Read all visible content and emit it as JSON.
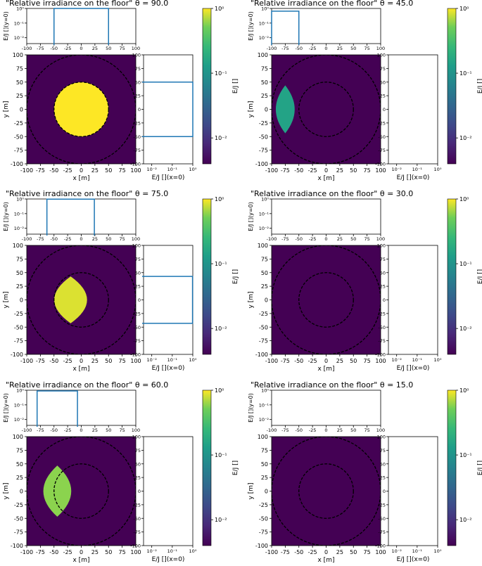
{
  "chart_data": [
    {
      "type": "heatmap",
      "title": "\"Relative irradiance on the floor\" θ = 90.0",
      "theta": 90.0,
      "xlabel": "x [m]",
      "ylabel": "y [m]",
      "xlim": [
        -100,
        100
      ],
      "ylim": [
        -100,
        100
      ],
      "top_ylabel": "E/J [](y=0)",
      "right_xlabel": "E/J [](x=0)",
      "colorbar_label": "E/J []",
      "xticks": [
        "-100",
        "-75",
        "-50",
        "-25",
        "0",
        "25",
        "50",
        "75",
        "100"
      ],
      "yticks": [
        "-100",
        "-75",
        "-50",
        "-25",
        "0",
        "25",
        "50",
        "75",
        "100"
      ],
      "profile_ticks": [
        "10⁻²",
        "10⁻¹",
        "10⁰"
      ],
      "colorbar_ticks": [
        "10⁰",
        "10⁻¹",
        "10⁻²"
      ],
      "inner_circle_radius": 50,
      "outer_circle_radius": 100,
      "lit_region": {
        "shape": "circle",
        "center": [
          0,
          0
        ],
        "radius": 50
      },
      "profile_y0": {
        "x_start": -50,
        "x_end": 50,
        "value": 1
      },
      "profile_x0": {
        "y_start": -50,
        "y_end": 50,
        "value": 1
      }
    },
    {
      "type": "heatmap",
      "title": "\"Relative irradiance on the floor\" θ = 45.0",
      "theta": 45.0,
      "xlabel": "x [m]",
      "ylabel": "y [m]",
      "xlim": [
        -100,
        100
      ],
      "ylim": [
        -100,
        100
      ],
      "top_ylabel": "E/J [](y=0)",
      "right_xlabel": "E/J [](x=0)",
      "colorbar_label": "E/J []",
      "xticks": [
        "-100",
        "-75",
        "-50",
        "-25",
        "0",
        "25",
        "50",
        "75",
        "100"
      ],
      "yticks": [
        "-100",
        "-75",
        "-50",
        "-25",
        "0",
        "25",
        "50",
        "75",
        "100"
      ],
      "profile_ticks": [
        "10⁻²",
        "10⁻¹",
        "10⁰"
      ],
      "colorbar_ticks": [
        "10⁰",
        "10⁻¹",
        "10⁻²"
      ],
      "inner_circle_radius": 50,
      "outer_circle_radius": 100,
      "lit_region": {
        "shape": "lens",
        "x_min": -100,
        "x_max": -50,
        "half_height": 44,
        "value": 0.65
      },
      "profile_y0": {
        "x_start": -100,
        "x_end": -50,
        "value": 0.65
      },
      "profile_x0": null
    },
    {
      "type": "heatmap",
      "title": "\"Relative irradiance on the floor\" θ = 75.0",
      "theta": 75.0,
      "xlabel": "x [m]",
      "ylabel": "y [m]",
      "xlim": [
        -100,
        100
      ],
      "ylim": [
        -100,
        100
      ],
      "top_ylabel": "E/J [](y=0)",
      "right_xlabel": "E/J [](x=0)",
      "colorbar_label": "E/J []",
      "xticks": [
        "-100",
        "-75",
        "-50",
        "-25",
        "0",
        "25",
        "50",
        "75",
        "100"
      ],
      "yticks": [
        "-100",
        "-75",
        "-50",
        "-25",
        "0",
        "25",
        "50",
        "75",
        "100"
      ],
      "profile_ticks": [
        "10⁻²",
        "10⁻¹",
        "10⁰"
      ],
      "colorbar_ticks": [
        "10⁰",
        "10⁻¹",
        "10⁻²"
      ],
      "inner_circle_radius": 50,
      "outer_circle_radius": 100,
      "lit_region": {
        "shape": "lens",
        "x_min": -63,
        "x_max": 24,
        "half_height": 43,
        "value": 0.97
      },
      "profile_y0": {
        "x_start": -63,
        "x_end": 24,
        "value": 0.97
      },
      "profile_x0": {
        "y_start": -43,
        "y_end": 43,
        "value": 0.97
      }
    },
    {
      "type": "heatmap",
      "title": "\"Relative irradiance on the floor\" θ = 30.0",
      "theta": 30.0,
      "xlabel": "x [m]",
      "ylabel": "y [m]",
      "xlim": [
        -100,
        100
      ],
      "ylim": [
        -100,
        100
      ],
      "top_ylabel": "E/J [](y=0)",
      "right_xlabel": "E/J [](x=0)",
      "colorbar_label": "E/J []",
      "xticks": [
        "-100",
        "-75",
        "-50",
        "-25",
        "0",
        "25",
        "50",
        "75",
        "100"
      ],
      "yticks": [
        "-100",
        "-75",
        "-50",
        "-25",
        "0",
        "25",
        "50",
        "75",
        "100"
      ],
      "profile_ticks": [
        "10⁻²",
        "10⁻¹",
        "10⁰"
      ],
      "colorbar_ticks": [
        "10⁰",
        "10⁻¹",
        "10⁻²"
      ],
      "inner_circle_radius": 50,
      "outer_circle_radius": 100,
      "lit_region": null,
      "profile_y0": null,
      "profile_x0": null
    },
    {
      "type": "heatmap",
      "title": "\"Relative irradiance on the floor\" θ = 60.0",
      "theta": 60.0,
      "xlabel": "x [m]",
      "ylabel": "y [m]",
      "xlim": [
        -100,
        100
      ],
      "ylim": [
        -100,
        100
      ],
      "top_ylabel": "E/J [](y=0)",
      "right_xlabel": "E/J [](x=0)",
      "colorbar_label": "E/J []",
      "xticks": [
        "-100",
        "-75",
        "-50",
        "-25",
        "0",
        "25",
        "50",
        "75",
        "100"
      ],
      "yticks": [
        "-100",
        "-75",
        "-50",
        "-25",
        "0",
        "25",
        "50",
        "75",
        "100"
      ],
      "profile_ticks": [
        "10⁻²",
        "10⁻¹",
        "10⁰"
      ],
      "colorbar_ticks": [
        "10⁰",
        "10⁻¹",
        "10⁻²"
      ],
      "inner_circle_radius": 50,
      "outer_circle_radius": 100,
      "lit_region": {
        "shape": "lens",
        "x_min": -81,
        "x_max": -7,
        "half_height": 47,
        "value": 0.9
      },
      "profile_y0": {
        "x_start": -81,
        "x_end": -7,
        "value": 0.9
      },
      "profile_x0": null
    },
    {
      "type": "heatmap",
      "title": "\"Relative irradiance on the floor\" θ = 15.0",
      "theta": 15.0,
      "xlabel": "x [m]",
      "ylabel": "y [m]",
      "xlim": [
        -100,
        100
      ],
      "ylim": [
        -100,
        100
      ],
      "top_ylabel": "E/J [](y=0)",
      "right_xlabel": "E/J [](x=0)",
      "colorbar_label": "E/J []",
      "xticks": [
        "-100",
        "-75",
        "-50",
        "-25",
        "0",
        "25",
        "50",
        "75",
        "100"
      ],
      "yticks": [
        "-100",
        "-75",
        "-50",
        "-25",
        "0",
        "25",
        "50",
        "75",
        "100"
      ],
      "profile_ticks": [
        "10⁻²",
        "10⁻¹",
        "10⁰"
      ],
      "colorbar_ticks": [
        "10⁰",
        "10⁻¹",
        "10⁻²"
      ],
      "inner_circle_radius": 50,
      "outer_circle_radius": 100,
      "lit_region": null,
      "profile_y0": null,
      "profile_x0": null
    }
  ],
  "colors": {
    "background_field": "#440154",
    "profile_line": "#1f77b4",
    "colormap": "viridis"
  }
}
